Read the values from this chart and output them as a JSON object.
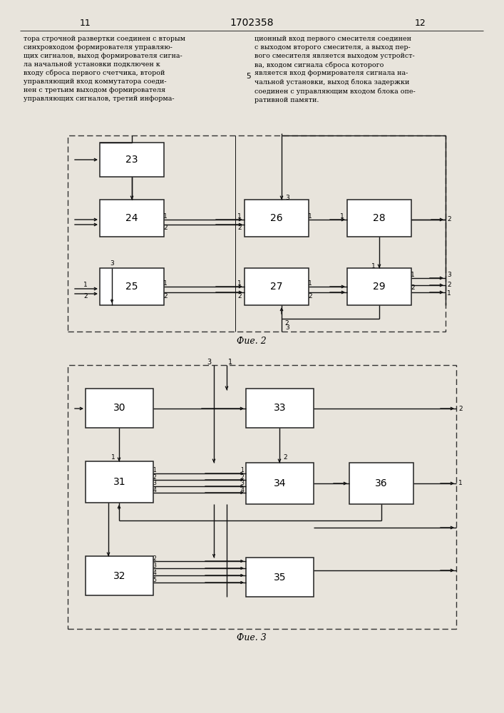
{
  "page_width": 7.07,
  "page_height": 10.0,
  "bg_color": "#e8e4dc",
  "header": {
    "left_num": "11",
    "center_num": "1702358",
    "right_num": "12"
  },
  "left_text": "тора строчной развертки соединен с вторым\nсинхровходом формирователя управляю-\nщих сигналов, выход формирователя сигна-\nла начальной установки подключен к\nвходу сброса первого счетчика, второй\nуправляющий вход коммутатора соеди-\nнен с третьим выходом формирователя\nуправляющих сигналов, третий информа-",
  "right_text": "ционный вход первого смесителя соединен\nс выходом второго смесителя, а выход пер-\nвого смесителя является выходом устройст-\nва, входом сигнала сброса которого\nявляется вход формирователя сигнала на-\nчальной установки, выход блока задержки\nсоединен с управляющим входом блока опе-\nративной памяти.",
  "fig2_caption": "Фие. 2",
  "fig3_caption": "Фие. 3",
  "line_number_5": "5"
}
